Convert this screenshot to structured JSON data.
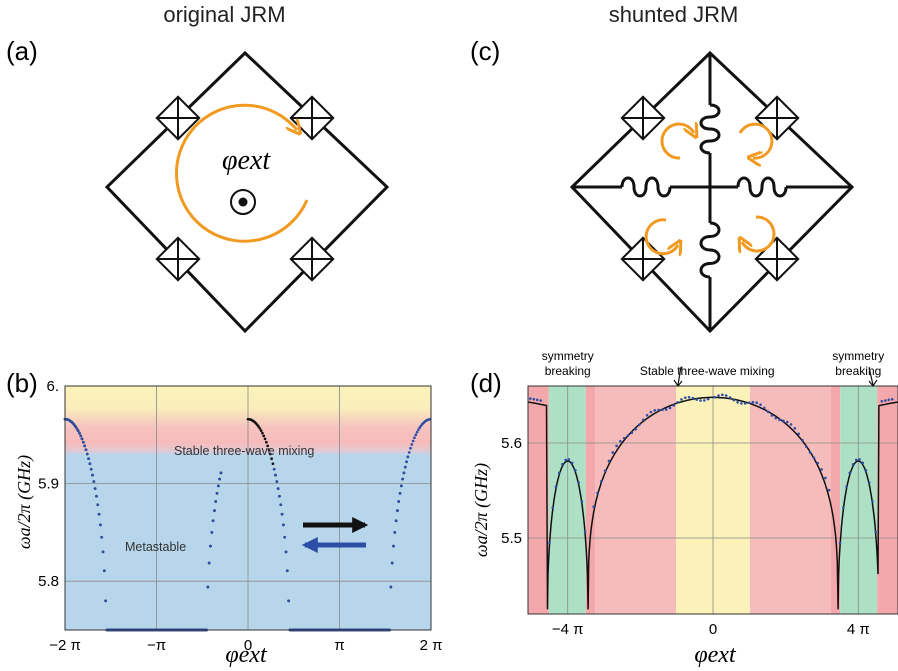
{
  "titles": {
    "left": "original JRM",
    "right": "shunted JRM"
  },
  "panels": {
    "a": "(a)",
    "b": "(b)",
    "c": "(c)",
    "d": "(d)"
  },
  "circuit_a": {
    "flux_label": "φext"
  },
  "colors": {
    "yellow": "#fbf2b9",
    "pink": "#f6bcbc",
    "blue": "#b7d6ec",
    "red": "#f3a9ac",
    "green": "#aee0c6",
    "orange": "#f19a22",
    "series_dark": "#111111",
    "series_blue": "#2c4ea6"
  },
  "chart_data": [
    {
      "id": "b",
      "type": "scatter",
      "xlabel": "φext",
      "ylabel": "ωa/2π (GHz)",
      "xlim": [
        -6.2832,
        6.2832
      ],
      "ylim": [
        5.75,
        6.0
      ],
      "x_ticks": [
        {
          "value": -6.2832,
          "label": "−2 π"
        },
        {
          "value": -3.1416,
          "label": "−π"
        },
        {
          "value": 0,
          "label": "0"
        },
        {
          "value": 3.1416,
          "label": "π"
        },
        {
          "value": 6.2832,
          "label": "2 π"
        }
      ],
      "y_ticks": [
        {
          "value": 6.0,
          "label": "6."
        },
        {
          "value": 5.9,
          "label": "5.9"
        },
        {
          "value": 5.8,
          "label": "5.8"
        }
      ],
      "regions": [
        {
          "label": "Stable three-wave mixing",
          "y_from": 5.9,
          "y_to": 6.0
        },
        {
          "label": "Metastable",
          "y_from": 5.75,
          "y_to": 5.9
        }
      ],
      "series": [
        {
          "color": "dark",
          "direction": "right",
          "x_min": -6.2832,
          "x_max": -0.9,
          "f0": 5.966,
          "phi0": 1.1,
          "offset_step": 0
        },
        {
          "color": "dark",
          "direction": "right",
          "x_min": 0,
          "x_max": 5.5,
          "f0": 5.966,
          "phi0": 1.1,
          "offset_step": 6.2832
        },
        {
          "color": "blue",
          "direction": "left",
          "x_min": -6.2832,
          "x_max": -0.9,
          "f0": 5.966,
          "phi0": 1.1,
          "offset_step": -6.2832
        },
        {
          "color": "blue",
          "direction": "left",
          "x_min": 0.9,
          "x_max": 6.2832,
          "f0": 5.966,
          "phi0": 1.1,
          "offset_step": 0
        }
      ]
    },
    {
      "id": "d",
      "type": "line",
      "xlabel": "φext",
      "ylabel": "ωa/2π (GHz)",
      "xlim": [
        -16.0,
        16.0
      ],
      "ylim": [
        5.42,
        5.66
      ],
      "x_ticks": [
        {
          "value": -12.566,
          "label": "−4 π"
        },
        {
          "value": 0,
          "label": "0"
        },
        {
          "value": 12.566,
          "label": "4 π"
        }
      ],
      "y_ticks": [
        {
          "value": 5.6,
          "label": "5.6"
        },
        {
          "value": 5.5,
          "label": "5.5"
        }
      ],
      "annotations": [
        {
          "label": "symmetry",
          "x": -12.566,
          "line": 1
        },
        {
          "label": "breaking",
          "x": -12.566,
          "line": 2
        },
        {
          "label": "Stable  three-wave mixing",
          "x": -0.5,
          "line": 2
        },
        {
          "label": "symmetry",
          "x": 12.566,
          "line": 1
        },
        {
          "label": "breaking",
          "x": 12.566,
          "line": 2
        }
      ],
      "bands": [
        {
          "color": "red",
          "from": -16.0,
          "to": -14.2
        },
        {
          "color": "green",
          "from": -14.2,
          "to": -11.0
        },
        {
          "color": "red",
          "from": -11.0,
          "to": -10.2
        },
        {
          "color": "pink",
          "from": -10.2,
          "to": -3.2
        },
        {
          "color": "yellow",
          "from": -3.2,
          "to": 3.2
        },
        {
          "color": "pink",
          "from": 3.2,
          "to": 10.2
        },
        {
          "color": "red",
          "from": 10.2,
          "to": 11.0
        },
        {
          "color": "green",
          "from": 11.0,
          "to": 14.2
        },
        {
          "color": "red",
          "from": 14.2,
          "to": 16.0
        }
      ],
      "main_arch": {
        "x_min": -10.8,
        "x_max": 10.8,
        "peak": 5.648
      },
      "side_peaks": [
        {
          "x_center": -12.566,
          "half_width": 1.75,
          "peak": 5.581
        },
        {
          "x_center": 12.566,
          "half_width": 1.75,
          "peak": 5.581
        }
      ],
      "floor": 5.425
    }
  ]
}
